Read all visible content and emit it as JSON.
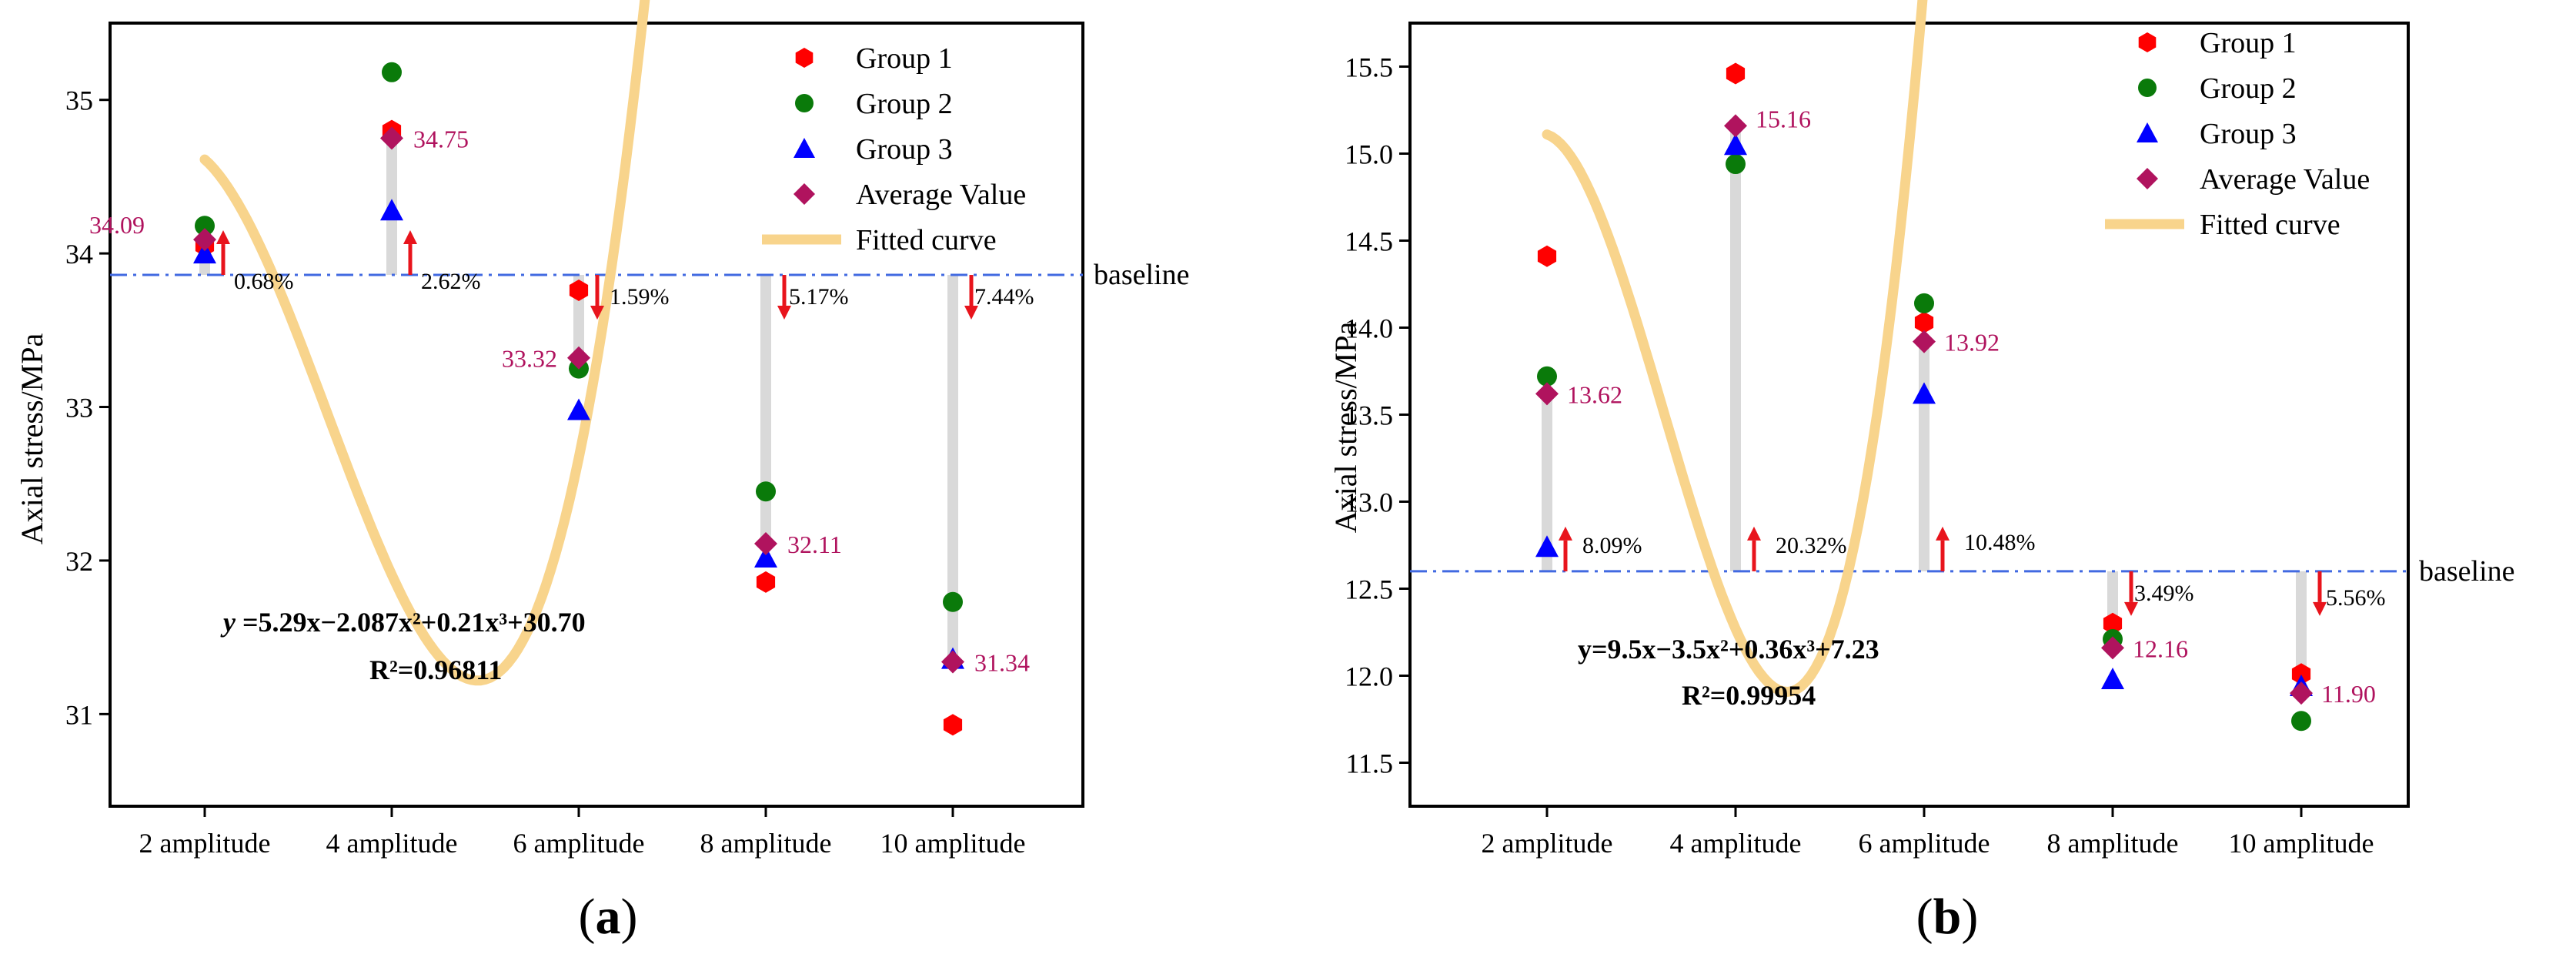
{
  "chart_data": [
    {
      "panel_label": "a",
      "type": "scatter",
      "ylabel": "Axial stress/MPa",
      "xlabel": "",
      "categories": [
        "2 amplitude",
        "4 amplitude",
        "6 amplitude",
        "8 amplitude",
        "10 amplitude"
      ],
      "x": [
        2,
        4,
        6,
        8,
        10
      ],
      "ylim": [
        30.4,
        35.5
      ],
      "yticks": [
        31,
        32,
        33,
        34,
        35
      ],
      "ytick_labels": [
        "31",
        "32",
        "33",
        "34",
        "35"
      ],
      "series": [
        {
          "name": "Group 1",
          "marker": "hexagon",
          "color": "#ff0000",
          "values": [
            34.05,
            34.8,
            33.76,
            31.86,
            30.93
          ]
        },
        {
          "name": "Group 2",
          "marker": "circle",
          "color": "#0a7a0a",
          "values": [
            34.18,
            35.18,
            33.25,
            32.45,
            31.73
          ]
        },
        {
          "name": "Group 3",
          "marker": "triangle",
          "color": "#0000ff",
          "values": [
            34.0,
            34.28,
            32.98,
            32.02,
            31.36
          ]
        },
        {
          "name": "Average Value",
          "marker": "diamond",
          "color": "#b0135e",
          "values": [
            34.09,
            34.75,
            33.32,
            32.11,
            31.34
          ]
        }
      ],
      "average_labels": [
        "34.09",
        "34.75",
        "33.32",
        "32.11",
        "31.34"
      ],
      "average_label_color": "#b0135e",
      "baseline": {
        "value": 33.86,
        "label": "baseline"
      },
      "changes": [
        {
          "label": "0.68%",
          "direction": "up"
        },
        {
          "label": "2.62%",
          "direction": "up"
        },
        {
          "label": "1.59%",
          "direction": "down"
        },
        {
          "label": "5.17%",
          "direction": "down"
        },
        {
          "label": "7.44%",
          "direction": "down"
        }
      ],
      "fit": {
        "name": "Fitted curve",
        "a": 5.29,
        "b": -2.087,
        "c": 0.21,
        "d": 30.7,
        "color": "#f8d48c"
      },
      "equation_lhs": "y",
      "equation_rhs": " =5.29x−2.087x²+0.21x³+30.70",
      "r2": "R²=0.96811",
      "legend_position": "top-right"
    },
    {
      "panel_label": "b",
      "type": "scatter",
      "ylabel": "Axial stress/MPa",
      "xlabel": "",
      "categories": [
        "2 amplitude",
        "4 amplitude",
        "6 amplitude",
        "8 amplitude",
        "10 amplitude"
      ],
      "x": [
        2,
        4,
        6,
        8,
        10
      ],
      "ylim": [
        11.25,
        15.75
      ],
      "yticks": [
        11.5,
        12.0,
        12.5,
        13.0,
        13.5,
        14.0,
        14.5,
        15.0,
        15.5
      ],
      "ytick_labels": [
        "11.5",
        "12.0",
        "12.5",
        "13.0",
        "13.5",
        "14.0",
        "14.5",
        "15.0",
        "15.5"
      ],
      "series": [
        {
          "name": "Group 1",
          "marker": "hexagon",
          "color": "#ff0000",
          "values": [
            14.41,
            15.46,
            14.03,
            12.3,
            12.01
          ]
        },
        {
          "name": "Group 2",
          "marker": "circle",
          "color": "#0a7a0a",
          "values": [
            13.72,
            14.94,
            14.14,
            12.21,
            11.74
          ]
        },
        {
          "name": "Group 3",
          "marker": "triangle",
          "color": "#0000ff",
          "values": [
            12.74,
            15.05,
            13.62,
            11.98,
            11.94
          ]
        },
        {
          "name": "Average Value",
          "marker": "diamond",
          "color": "#b0135e",
          "values": [
            13.62,
            15.16,
            13.92,
            12.16,
            11.9
          ]
        }
      ],
      "average_labels": [
        "13.62",
        "15.16",
        "13.92",
        "12.16",
        "11.90"
      ],
      "average_label_color": "#b0135e",
      "baseline": {
        "value": 12.6,
        "label": "baseline"
      },
      "changes": [
        {
          "label": "8.09%",
          "direction": "up"
        },
        {
          "label": "20.32%",
          "direction": "up"
        },
        {
          "label": "10.48%",
          "direction": "up"
        },
        {
          "label": "3.49%",
          "direction": "down"
        },
        {
          "label": "5.56%",
          "direction": "down"
        }
      ],
      "fit": {
        "name": "Fitted curve",
        "a": 9.5,
        "b": -3.5,
        "c": 0.36,
        "d": 7.23,
        "color": "#f8d48c"
      },
      "equation_lhs": "",
      "equation_rhs": "y=9.5x−3.5x²+0.36x³+7.23",
      "r2": "R²=0.99954",
      "legend_position": "top-right"
    }
  ]
}
